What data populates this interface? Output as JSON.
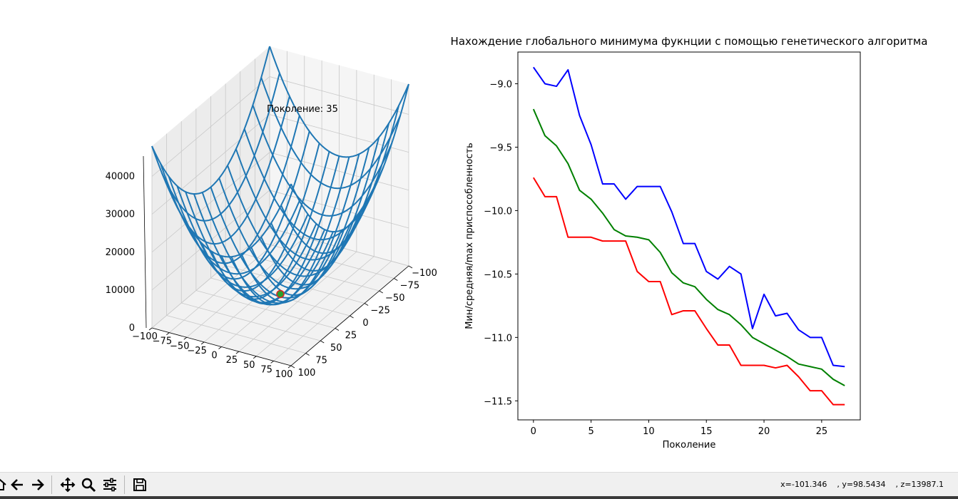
{
  "chart_data": [
    {
      "type": "surface3d",
      "annotation": "Поколение: 35",
      "x_ticks": [
        "−100",
        "−75",
        "−50",
        "−25",
        "0",
        "25",
        "50",
        "75",
        "100"
      ],
      "y_ticks": [
        "−100",
        "−75",
        "−50",
        "−25",
        "0",
        "25",
        "50",
        "75",
        "100"
      ],
      "z_ticks": [
        "0",
        "10000",
        "20000",
        "30000",
        "40000"
      ],
      "xlim": [
        -100,
        100
      ],
      "ylim": [
        -100,
        100
      ],
      "zlim": [
        0,
        48000
      ],
      "surface_color": "#1f77b4",
      "point": {
        "x": 0,
        "y": 0,
        "z": 0,
        "color": "#2ca02c",
        "edge_color": "#d62728"
      }
    },
    {
      "type": "line",
      "title": "Нахождение глобального минимума фукнции с помощью генетического алгоритма",
      "xlabel": "Поколение",
      "ylabel": "Мин/средняя/max приспособленность",
      "x_ticks": [
        0,
        5,
        10,
        15,
        20,
        25
      ],
      "y_ticks": [
        -9.0,
        -9.5,
        -10.0,
        -10.5,
        -11.0,
        -11.5
      ],
      "y_tick_labels": [
        "−9.0",
        "−9.5",
        "−10.0",
        "−10.5",
        "−11.0",
        "−11.5"
      ],
      "xlim": [
        -1.35,
        28.35
      ],
      "ylim": [
        -11.65,
        -8.75
      ],
      "x": [
        0,
        1,
        2,
        3,
        4,
        5,
        6,
        7,
        8,
        9,
        10,
        11,
        12,
        13,
        14,
        15,
        16,
        17,
        18,
        19,
        20,
        21,
        22,
        23,
        24,
        25,
        26,
        27
      ],
      "series": [
        {
          "color": "#0000ff",
          "values": [
            -8.87,
            -9.0,
            -9.02,
            -8.89,
            -9.25,
            -9.48,
            -9.79,
            -9.79,
            -9.91,
            -9.81,
            -9.81,
            -9.81,
            -10.01,
            -10.26,
            -10.26,
            -10.48,
            -10.54,
            -10.44,
            -10.5,
            -10.93,
            -10.66,
            -10.83,
            -10.81,
            -10.94,
            -11.0,
            -11.0,
            -11.22,
            -11.23
          ]
        },
        {
          "color": "#008000",
          "values": [
            -9.2,
            -9.41,
            -9.49,
            -9.63,
            -9.84,
            -9.91,
            -10.02,
            -10.15,
            -10.2,
            -10.21,
            -10.23,
            -10.33,
            -10.49,
            -10.57,
            -10.6,
            -10.7,
            -10.78,
            -10.82,
            -10.9,
            -11.0,
            -11.05,
            -11.1,
            -11.15,
            -11.21,
            -11.23,
            -11.25,
            -11.33,
            -11.38
          ]
        },
        {
          "color": "#ff0000",
          "values": [
            -9.74,
            -9.89,
            -9.89,
            -10.21,
            -10.21,
            -10.21,
            -10.24,
            -10.24,
            -10.24,
            -10.48,
            -10.56,
            -10.56,
            -10.82,
            -10.79,
            -10.79,
            -10.93,
            -11.06,
            -11.06,
            -11.22,
            -11.22,
            -11.22,
            -11.24,
            -11.22,
            -11.31,
            -11.42,
            -11.42,
            -11.53,
            -11.53
          ]
        }
      ]
    }
  ],
  "toolbar": {
    "buttons": [
      "home-icon",
      "back-arrow-icon",
      "forward-arrow-icon",
      "pan-icon",
      "zoom-icon",
      "subplots-icon",
      "save-icon"
    ],
    "coords": "x=-101.346    , y=98.5434    , z=13987.1"
  }
}
